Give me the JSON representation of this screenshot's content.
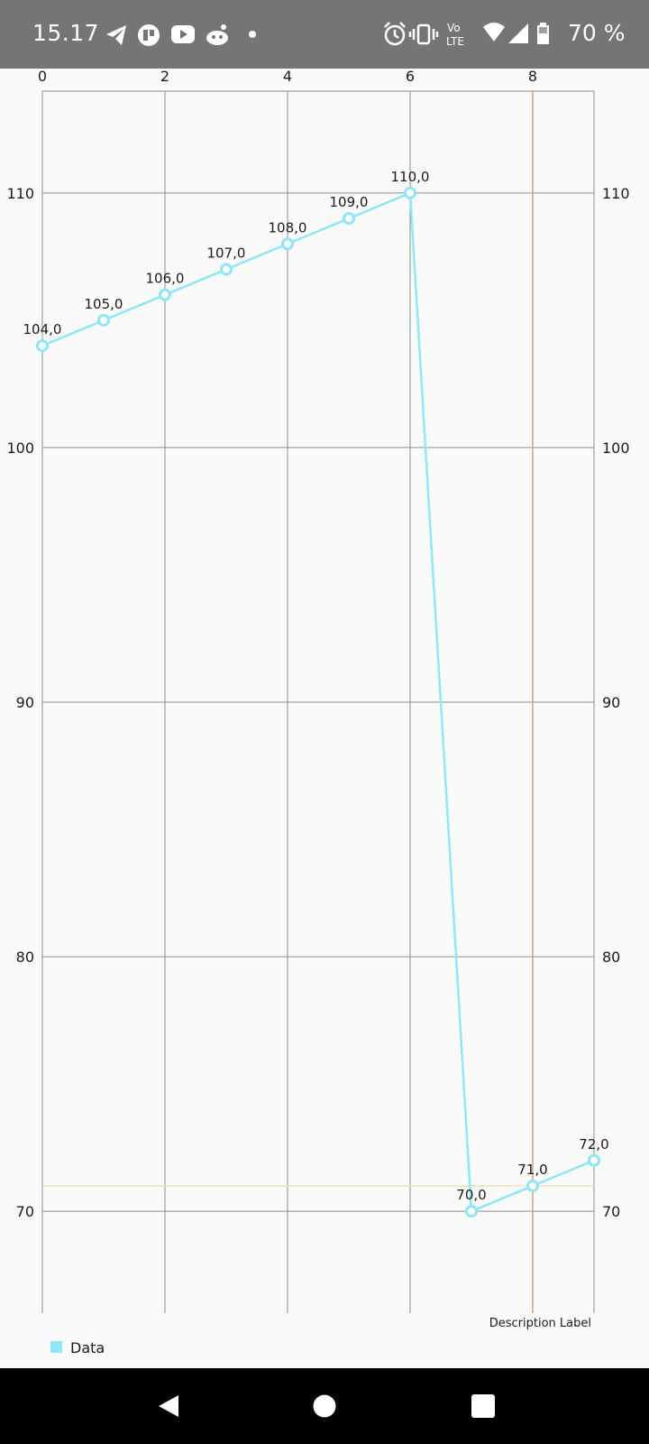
{
  "status_bar": {
    "time": "15.17",
    "left_icons": [
      "telegram-icon",
      "app-circle-icon",
      "youtube-icon",
      "reddit-icon",
      "dot-icon"
    ],
    "right_icons": [
      "alarm-icon",
      "vibrate-icon",
      "volte-icon",
      "wifi-icon",
      "signal-icon",
      "battery-icon"
    ],
    "volte_top": "Vo",
    "volte_bottom": "LTE",
    "battery": "70 %"
  },
  "chart_data": {
    "type": "line",
    "x": [
      0,
      1,
      2,
      3,
      4,
      5,
      6,
      7,
      8,
      9
    ],
    "series": [
      {
        "name": "Data",
        "color": "#8ee6f7",
        "values": [
          104,
          105,
          106,
          107,
          108,
          109,
          110,
          70,
          71,
          72
        ],
        "labels": [
          "104,0",
          "105,0",
          "106,0",
          "107,0",
          "108,0",
          "109,0",
          "110,0",
          "70,0",
          "71,0",
          "72,0"
        ]
      }
    ],
    "xlim": [
      0,
      9
    ],
    "ylim": [
      66,
      114
    ],
    "x_ticks": [
      0,
      2,
      4,
      6,
      8
    ],
    "x_tick_labels": [
      "0",
      "2",
      "4",
      "6",
      "8"
    ],
    "y_ticks": [
      70,
      80,
      90,
      100,
      110
    ],
    "y_tick_labels": [
      "70",
      "80",
      "90",
      "100",
      "110"
    ],
    "x_axis_position": "top",
    "y_axes": [
      "left",
      "right"
    ],
    "grid": true,
    "limit_lines": [
      {
        "axis": "x",
        "value": 8,
        "color": "#d2a27a"
      },
      {
        "axis": "y",
        "value": 71,
        "color": "#f3dfbf"
      }
    ],
    "description": "Description Label",
    "legend": {
      "entries": [
        "Data"
      ],
      "placement": "bottom-left"
    }
  },
  "nav_bar": {
    "buttons": [
      "back-icon",
      "home-icon",
      "recents-icon"
    ]
  }
}
